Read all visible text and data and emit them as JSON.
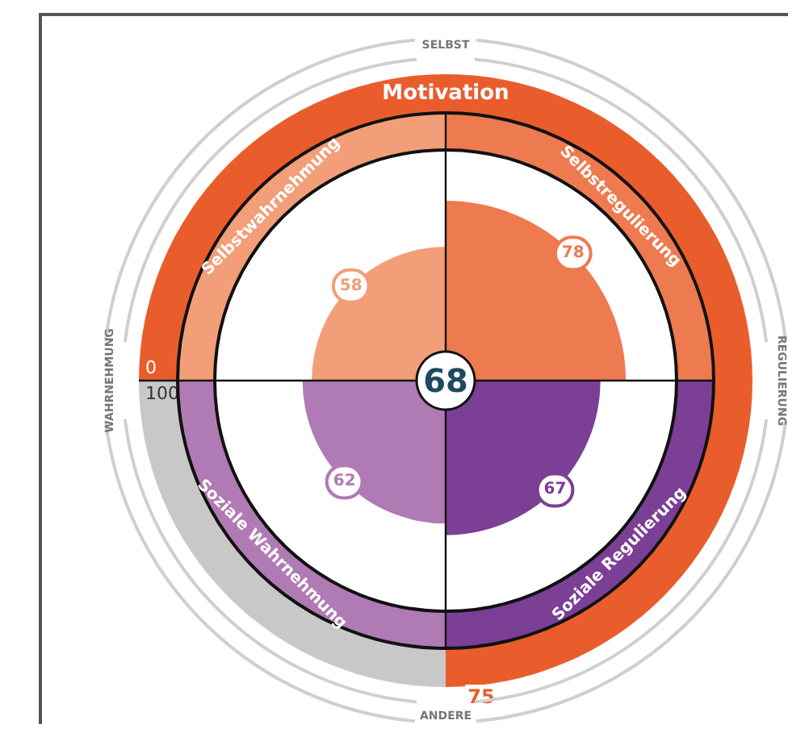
{
  "chart_data": [
    {
      "type": "other",
      "categories": [
        "Selbstwahrnehmung",
        "Selbstregulierung",
        "Soziale Wahrnehmung",
        "Soziale Regulierung"
      ],
      "values": [
        58,
        78,
        62,
        67
      ],
      "colors": [
        "#f29e78",
        "#ee7a50",
        "#b07ab4",
        "#7b3f95"
      ],
      "data_labels": true,
      "annotations": [
        "68",
        "SELBST",
        "ANDERE",
        "WAHRNEHMUNG",
        "REGULIERUNG"
      ]
    },
    {
      "type": "donut",
      "categories": [
        "Motivation",
        null
      ],
      "values": [
        75,
        25
      ],
      "colors": [
        "#e95d2c",
        "#c8c8c8"
      ],
      "value_labels": [
        "75",
        null
      ],
      "annotations": [
        "0",
        "100"
      ]
    }
  ]
}
